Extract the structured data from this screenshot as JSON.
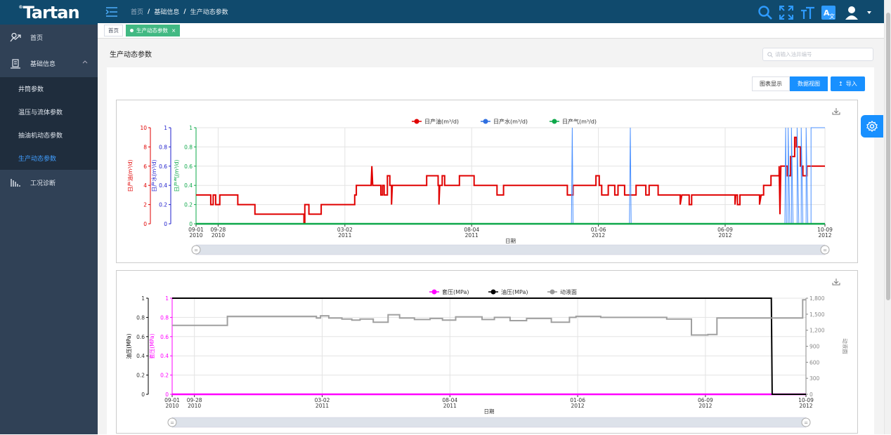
{
  "app": {
    "logo": "Tartan",
    "logo_mark": "®"
  },
  "sidebar": {
    "items": [
      {
        "label": "首页",
        "icon": "home-map-icon"
      },
      {
        "label": "基础信息",
        "icon": "basic-info-icon",
        "expanded": true
      },
      {
        "label": "井筒参数"
      },
      {
        "label": "温压与流体参数"
      },
      {
        "label": "抽油机动态参数"
      },
      {
        "label": "生产动态参数",
        "active": true
      },
      {
        "label": "工况诊断",
        "icon": "diagnosis-icon"
      }
    ]
  },
  "topbar": {
    "breadcrumb": [
      "首页",
      "基础信息",
      "生产动态参数"
    ],
    "icons": [
      "search-icon",
      "fullscreen-icon",
      "font-size-icon",
      "translate-icon",
      "user-avatar-icon"
    ]
  },
  "tags": [
    {
      "label": "首页",
      "active": false
    },
    {
      "label": "生产动态参数",
      "active": true,
      "close": "×"
    }
  ],
  "page": {
    "title": "生产动态参数",
    "search_placeholder": "请输入油井编号",
    "view_chart_label": "图表显示",
    "view_data_label": "数据视图",
    "import_label": "导入",
    "import_icon": "↥"
  },
  "colors": {
    "accent": "#1890ff",
    "sidebar": "#304156",
    "header": "#104a6d",
    "tag_active": "#42b983"
  },
  "chart_data": [
    {
      "type": "line",
      "legend": [
        "日产油(m³/d)",
        "日产水(m³/d)",
        "日产气(m³/d)"
      ],
      "legend_colors": [
        "#e00000",
        "#2f6fe0",
        "#0ea84a"
      ],
      "xlabel": "日期",
      "x_ticks": [
        [
          "09-01",
          "2010"
        ],
        [
          "09-28",
          "2010"
        ],
        [
          "03-02",
          "2011"
        ],
        [
          "08-04",
          "2011"
        ],
        [
          "01-06",
          "2012"
        ],
        [
          "06-09",
          "2012"
        ],
        [
          "10-09",
          "2012"
        ]
      ],
      "x_tick_days": [
        0,
        27,
        182,
        337,
        492,
        647,
        769
      ],
      "x_range_days": [
        0,
        769
      ],
      "y_axes": [
        {
          "label": "日产油(m³/d)",
          "ticks": [
            "0",
            "2",
            "4",
            "6",
            "8",
            "10"
          ],
          "range": [
            0,
            10
          ],
          "color": "#e00000"
        },
        {
          "label": "日产水(m³/d)",
          "ticks": [
            "0",
            "0.2",
            "0.4",
            "0.6",
            "0.8",
            "1"
          ],
          "range": [
            0,
            1
          ],
          "color": "#2222cc"
        },
        {
          "label": "日产气(m³/d)",
          "ticks": [
            "0",
            "0.2",
            "0.4",
            "0.6",
            "0.8",
            "1"
          ],
          "range": [
            0,
            1
          ],
          "color": "#0ea84a"
        }
      ],
      "series": [
        {
          "name": "日产油(m³/d)",
          "points": [
            [
              0,
              3
            ],
            [
              18,
              3
            ],
            [
              18,
              2
            ],
            [
              21,
              2
            ],
            [
              21,
              3
            ],
            [
              24,
              3
            ],
            [
              24,
              2
            ],
            [
              29,
              2
            ],
            [
              29,
              3
            ],
            [
              51,
              3
            ],
            [
              51,
              2
            ],
            [
              72,
              2
            ],
            [
              72,
              1
            ],
            [
              132,
              1
            ],
            [
              132,
              0
            ],
            [
              133,
              0
            ],
            [
              133,
              2
            ],
            [
              138,
              2
            ],
            [
              138,
              1
            ],
            [
              153,
              1
            ],
            [
              153,
              2
            ],
            [
              194,
              2
            ],
            [
              194,
              3
            ],
            [
              196,
              3
            ],
            [
              196,
              4
            ],
            [
              214,
              4
            ],
            [
              214,
              4
            ],
            [
              215,
              6
            ],
            [
              216,
              4
            ],
            [
              226,
              4
            ],
            [
              226,
              3
            ],
            [
              228,
              3
            ],
            [
              228,
              4
            ],
            [
              230,
              4
            ],
            [
              230,
              3
            ],
            [
              234,
              3
            ],
            [
              234,
              5
            ],
            [
              237,
              5
            ],
            [
              237,
              4
            ],
            [
              239,
              4
            ],
            [
              239,
              2
            ],
            [
              240,
              4
            ],
            [
              282,
              4
            ],
            [
              282,
              4
            ],
            [
              282,
              5
            ],
            [
              296,
              5
            ],
            [
              296,
              4
            ],
            [
              297,
              4
            ],
            [
              297,
              2
            ],
            [
              298,
              4
            ],
            [
              301,
              4
            ],
            [
              301,
              5
            ],
            [
              304,
              5
            ],
            [
              304,
              4
            ],
            [
              322,
              4
            ],
            [
              322,
              5
            ],
            [
              340,
              5
            ],
            [
              340,
              4
            ],
            [
              368,
              4
            ],
            [
              368,
              3
            ],
            [
              376,
              3
            ],
            [
              376,
              4
            ],
            [
              454,
              4
            ],
            [
              454,
              3
            ],
            [
              461,
              3
            ],
            [
              461,
              4
            ],
            [
              489,
              4
            ],
            [
              489,
              4
            ],
            [
              489,
              5
            ],
            [
              493,
              5
            ],
            [
              493,
              4
            ],
            [
              496,
              4
            ],
            [
              496,
              3
            ],
            [
              504,
              3
            ],
            [
              504,
              4
            ],
            [
              512,
              4
            ],
            [
              512,
              3
            ],
            [
              516,
              3
            ],
            [
              516,
              4
            ],
            [
              524,
              4
            ],
            [
              524,
              3
            ],
            [
              538,
              3
            ],
            [
              538,
              4
            ],
            [
              550,
              4
            ],
            [
              550,
              3
            ],
            [
              554,
              3
            ],
            [
              554,
              4
            ],
            [
              565,
              4
            ],
            [
              565,
              3
            ],
            [
              592,
              3
            ],
            [
              592,
              2
            ],
            [
              594,
              3
            ],
            [
              603,
              3
            ],
            [
              603,
              2
            ],
            [
              606,
              2
            ],
            [
              606,
              3
            ],
            [
              659,
              3
            ],
            [
              659,
              2
            ],
            [
              660,
              3
            ],
            [
              662,
              3
            ],
            [
              662,
              2
            ],
            [
              665,
              2
            ],
            [
              665,
              3
            ],
            [
              689,
              3
            ],
            [
              689,
              2
            ],
            [
              691,
              3
            ],
            [
              694,
              3
            ],
            [
              694,
              4
            ],
            [
              703,
              4
            ],
            [
              703,
              5
            ],
            [
              713,
              5
            ],
            [
              713,
              6
            ],
            [
              714,
              1
            ],
            [
              715,
              6
            ],
            [
              723,
              6
            ],
            [
              723,
              5
            ],
            [
              727,
              5
            ],
            [
              727,
              7
            ],
            [
              732,
              7
            ],
            [
              732,
              9
            ],
            [
              734,
              9
            ],
            [
              734,
              8
            ],
            [
              739,
              8
            ],
            [
              739,
              6
            ],
            [
              742,
              6
            ],
            [
              742,
              5
            ],
            [
              747,
              5
            ],
            [
              747,
              6
            ],
            [
              754,
              6
            ],
            [
              769,
              6
            ]
          ]
        },
        {
          "name": "日产水(m³/d)",
          "points": [
            [
              0,
              0
            ],
            [
              459,
              0
            ],
            [
              459,
              0
            ],
            [
              460,
              1
            ],
            [
              461,
              0
            ],
            [
              530,
              0
            ],
            [
              530,
              0
            ],
            [
              531,
              1
            ],
            [
              532,
              0
            ],
            [
              720,
              0
            ],
            [
              720,
              0
            ],
            [
              721,
              1
            ],
            [
              722,
              0
            ],
            [
              724,
              0
            ],
            [
              724,
              1
            ],
            [
              726,
              0
            ],
            [
              728,
              0
            ],
            [
              728,
              1
            ],
            [
              730,
              0
            ],
            [
              735,
              0
            ],
            [
              735,
              1
            ],
            [
              737,
              0
            ],
            [
              740,
              0
            ],
            [
              740,
              1
            ],
            [
              742,
              0
            ],
            [
              746,
              0
            ],
            [
              746,
              1
            ],
            [
              748,
              0
            ],
            [
              752,
              0
            ],
            [
              752,
              1
            ],
            [
              760,
              1
            ],
            [
              760,
              1
            ],
            [
              769,
              1
            ]
          ]
        },
        {
          "name": "日产气(m³/d)",
          "points": [
            [
              0,
              0
            ],
            [
              769,
              0
            ]
          ]
        }
      ]
    },
    {
      "type": "line",
      "legend": [
        "套压(MPa)",
        "油压(MPa)",
        "动液面"
      ],
      "legend_colors": [
        "#ff00ff",
        "#000000",
        "#999999"
      ],
      "xlabel": "日期",
      "x_ticks": [
        [
          "09-01",
          "2010"
        ],
        [
          "09-28",
          "2010"
        ],
        [
          "03-02",
          "2011"
        ],
        [
          "08-04",
          "2011"
        ],
        [
          "01-06",
          "2012"
        ],
        [
          "06-09",
          "2012"
        ],
        [
          "10-09",
          "2012"
        ]
      ],
      "x_tick_days": [
        0,
        27,
        182,
        337,
        492,
        647,
        769
      ],
      "x_range_days": [
        0,
        769
      ],
      "y_axes": [
        {
          "label": "油压(MPa)",
          "ticks": [
            "0",
            "0.2",
            "0.4",
            "0.6",
            "0.8",
            "1"
          ],
          "range": [
            0,
            1
          ],
          "color": "#000000"
        },
        {
          "label": "套压(MPa)",
          "ticks": [
            "0",
            "0.2",
            "0.4",
            "0.6",
            "0.8",
            "1"
          ],
          "range": [
            0,
            1
          ],
          "color": "#ff00ff"
        },
        {
          "label": "动液面",
          "ticks": [
            "0",
            "300",
            "600",
            "900",
            "1,200",
            "1,500",
            "1,800"
          ],
          "range": [
            0,
            1800
          ],
          "color": "#888888"
        }
      ],
      "series": [
        {
          "name": "套压(MPa)",
          "points": [
            [
              0,
              0
            ],
            [
              769,
              0
            ]
          ]
        },
        {
          "name": "油压(MPa)",
          "points": [
            [
              0,
              1
            ],
            [
              727,
              1
            ],
            [
              728,
              0
            ],
            [
              769,
              0
            ]
          ]
        },
        {
          "name": "动液面",
          "points": [
            [
              0,
              1290
            ],
            [
              67,
              1290
            ],
            [
              67,
              1460
            ],
            [
              175,
              1460
            ],
            [
              175,
              1430
            ],
            [
              180,
              1430
            ],
            [
              180,
              1470
            ],
            [
              190,
              1470
            ],
            [
              190,
              1430
            ],
            [
              206,
              1430
            ],
            [
              206,
              1410
            ],
            [
              218,
              1410
            ],
            [
              218,
              1390
            ],
            [
              228,
              1390
            ],
            [
              228,
              1410
            ],
            [
              244,
              1410
            ],
            [
              244,
              1350
            ],
            [
              262,
              1350
            ],
            [
              262,
              1490
            ],
            [
              276,
              1490
            ],
            [
              276,
              1430
            ],
            [
              294,
              1430
            ],
            [
              294,
              1400
            ],
            [
              313,
              1400
            ],
            [
              313,
              1420
            ],
            [
              328,
              1420
            ],
            [
              328,
              1390
            ],
            [
              344,
              1390
            ],
            [
              344,
              1450
            ],
            [
              376,
              1450
            ],
            [
              376,
              1400
            ],
            [
              391,
              1400
            ],
            [
              391,
              1440
            ],
            [
              410,
              1440
            ],
            [
              410,
              1380
            ],
            [
              430,
              1380
            ],
            [
              430,
              1420
            ],
            [
              460,
              1420
            ],
            [
              460,
              1350
            ],
            [
              482,
              1350
            ],
            [
              482,
              1440
            ],
            [
              490,
              1440
            ],
            [
              490,
              1460
            ],
            [
              520,
              1460
            ],
            [
              520,
              1440
            ],
            [
              600,
              1440
            ],
            [
              600,
              1410
            ],
            [
              630,
              1410
            ],
            [
              630,
              1110
            ],
            [
              650,
              1110
            ],
            [
              650,
              1120
            ],
            [
              661,
              1120
            ],
            [
              661,
              1430
            ],
            [
              765,
              1430
            ],
            [
              765,
              1770
            ],
            [
              769,
              1770
            ]
          ]
        }
      ]
    }
  ]
}
